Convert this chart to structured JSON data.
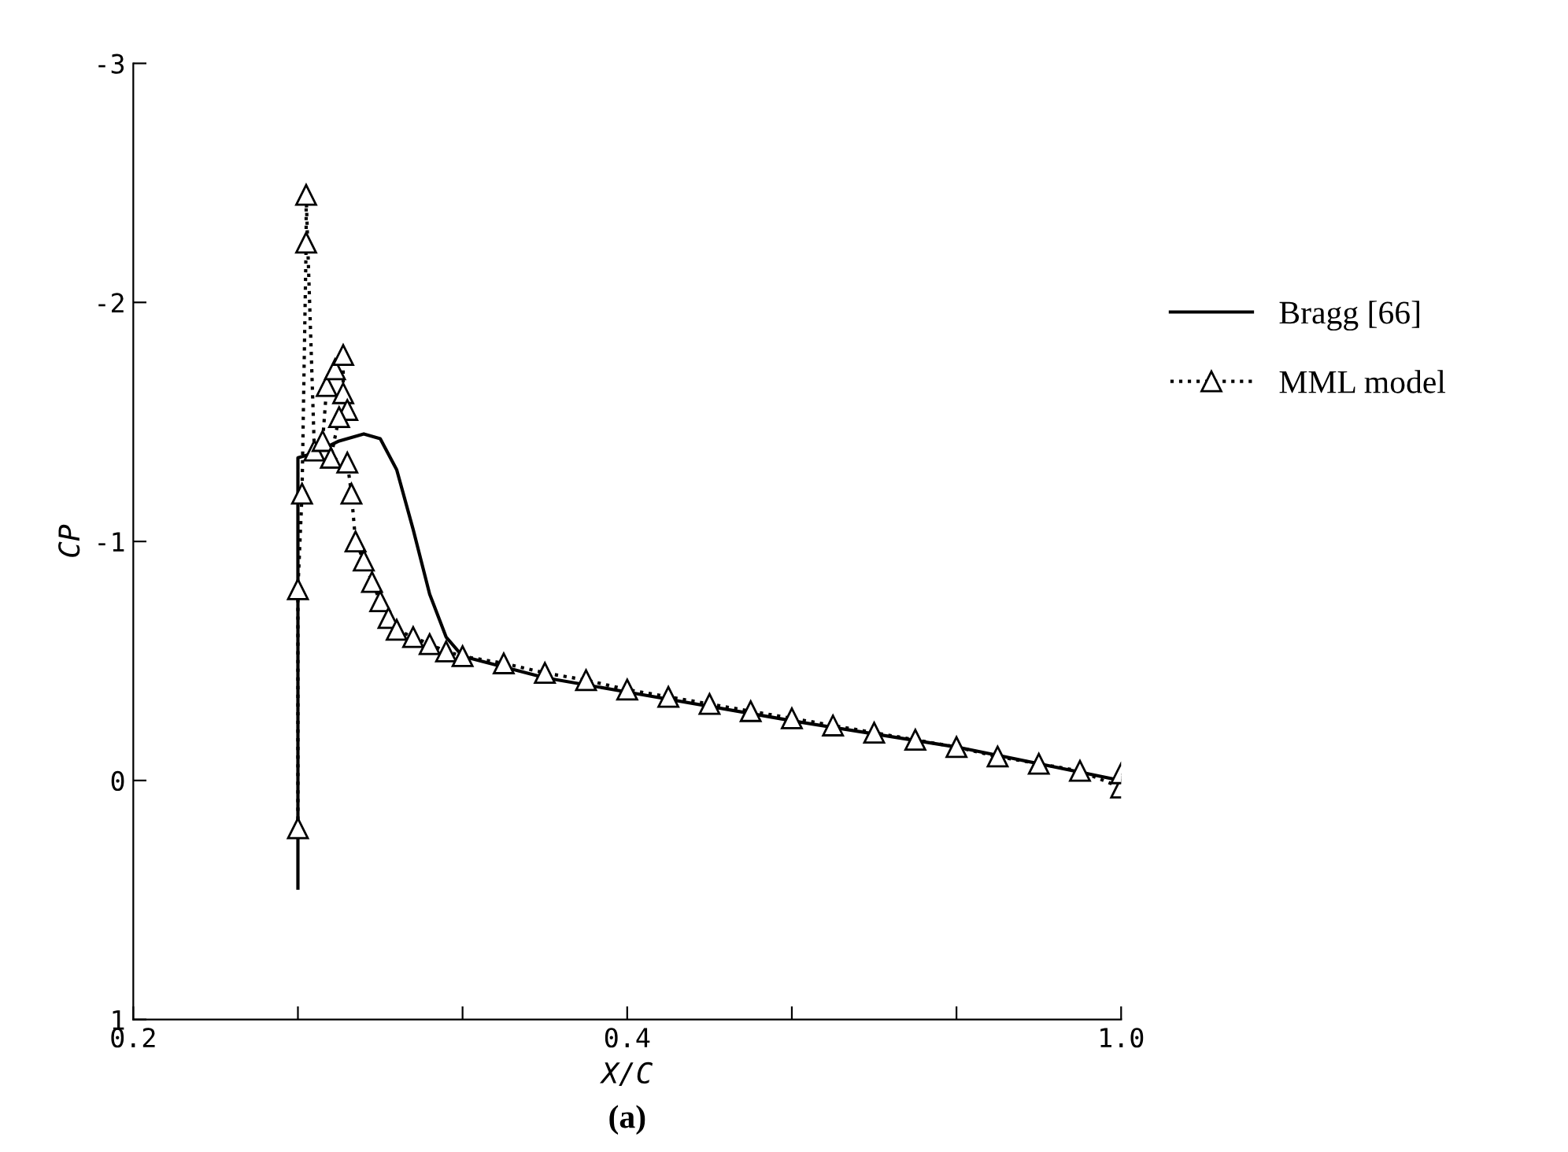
{
  "chart_data": {
    "type": "line",
    "xlabel": "X/C",
    "ylabel": "CP",
    "annotations": [
      "(a)"
    ],
    "xlim": [
      -0.2,
      1.0
    ],
    "xticks": [
      {
        "value": -0.2,
        "label": "0.2"
      },
      {
        "value": 0.0,
        "label": null
      },
      {
        "value": 0.2,
        "label": null
      },
      0.4,
      {
        "value": 0.6,
        "label": null
      },
      {
        "value": 0.8,
        "label": null
      },
      {
        "value": 1.0,
        "label": "1.0"
      }
    ],
    "ylim": [
      1,
      -3
    ],
    "yticks": [
      -3,
      -2,
      -1,
      0,
      1
    ],
    "grid": false,
    "legend": "right",
    "series": [
      {
        "name": "Bragg [66]",
        "color": "#000000",
        "marker": "none",
        "line_style": "solid",
        "x": [
          0,
          0,
          0.02,
          0.05,
          0.08,
          0.1,
          0.12,
          0.14,
          0.16,
          0.18,
          0.2,
          0.3,
          0.4,
          0.6,
          0.8,
          1.0
        ],
        "values": [
          0.45,
          -1.35,
          -1.37,
          -1.42,
          -1.45,
          -1.43,
          -1.3,
          -1.05,
          -0.78,
          -0.6,
          -0.52,
          -0.43,
          -0.37,
          -0.25,
          -0.14,
          0.0
        ]
      },
      {
        "name": "MML model",
        "color": "#000000",
        "marker": "triangle",
        "line_style": "dotted",
        "x": [
          0,
          0,
          0.005,
          0.01,
          0.01,
          0.02,
          0.03,
          0.035,
          0.045,
          0.055,
          0.055,
          0.06,
          0.05,
          0.04,
          0.06,
          0.065,
          0.07,
          0.08,
          0.09,
          0.1,
          0.11,
          0.12,
          0.14,
          0.16,
          0.18,
          0.2,
          0.25,
          0.3,
          0.35,
          0.4,
          0.45,
          0.5,
          0.55,
          0.6,
          0.65,
          0.7,
          0.75,
          0.8,
          0.85,
          0.9,
          0.95,
          1.0,
          1.0
        ],
        "values": [
          0.2,
          -0.8,
          -1.2,
          -2.25,
          -2.45,
          -1.38,
          -1.42,
          -1.65,
          -1.72,
          -1.78,
          -1.62,
          -1.55,
          -1.52,
          -1.35,
          -1.33,
          -1.2,
          -1.0,
          -0.92,
          -0.83,
          -0.75,
          -0.68,
          -0.63,
          -0.6,
          -0.57,
          -0.54,
          -0.52,
          -0.49,
          -0.45,
          -0.42,
          -0.38,
          -0.35,
          -0.32,
          -0.29,
          -0.26,
          -0.23,
          -0.2,
          -0.17,
          -0.14,
          -0.1,
          -0.07,
          -0.04,
          0.03,
          -0.03
        ]
      }
    ]
  }
}
